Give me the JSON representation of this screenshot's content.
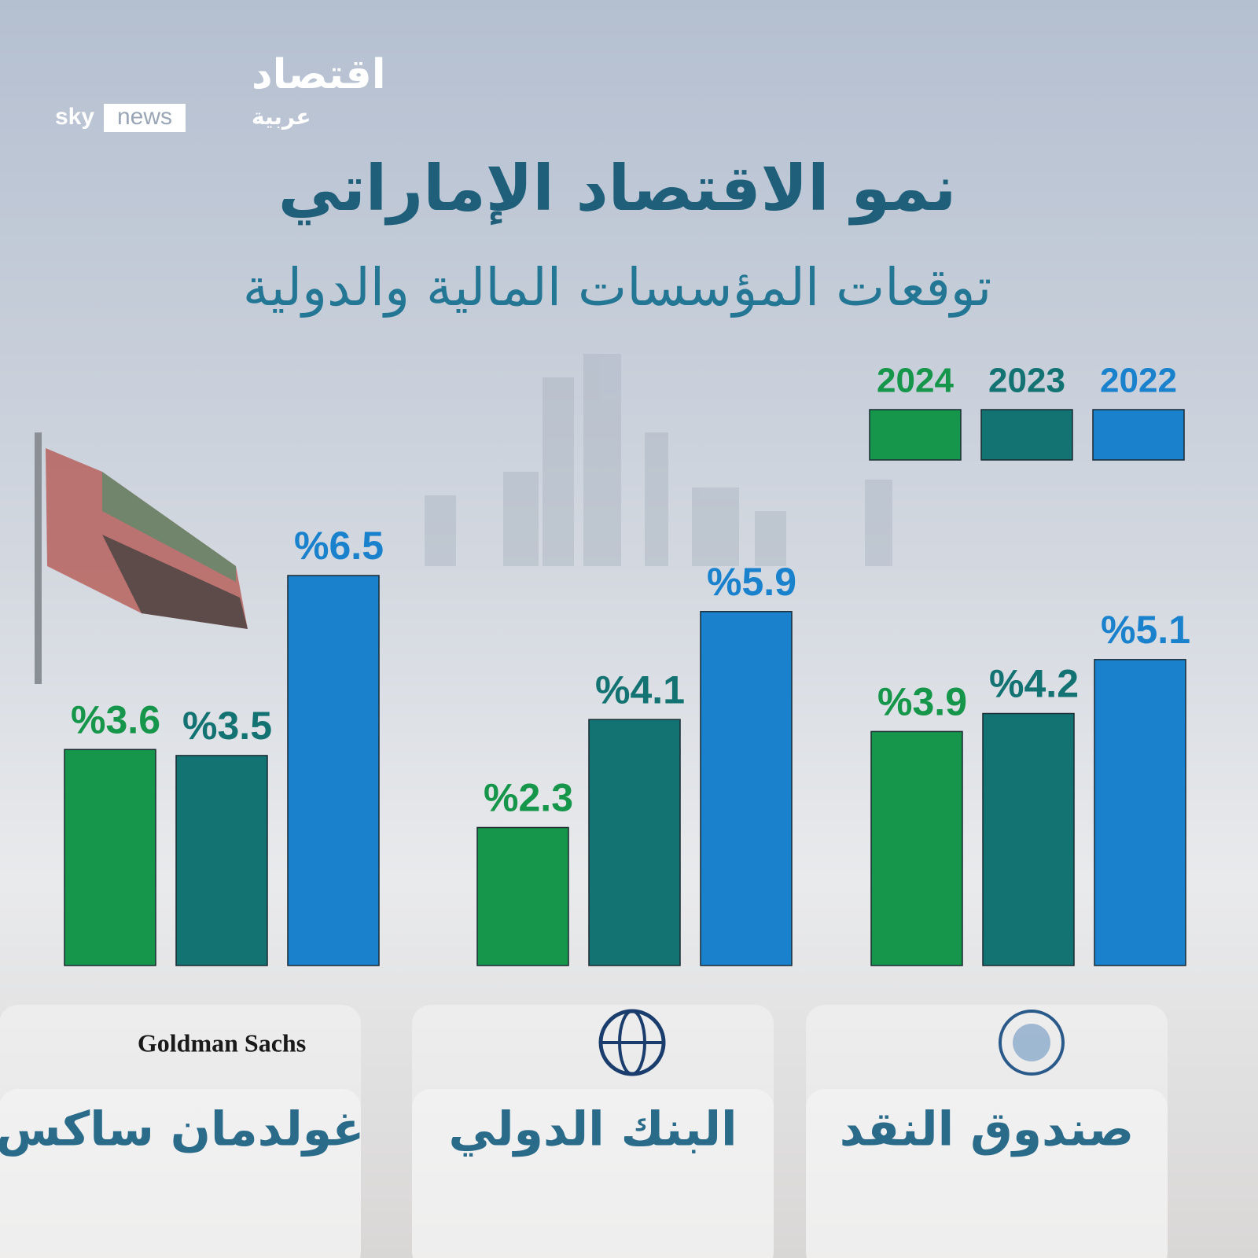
{
  "logo": {
    "brand": "اقتصاد",
    "sky": "sky",
    "news": "news",
    "arabic": "عربية"
  },
  "chart_data": {
    "type": "bar",
    "title": "نمو الاقتصاد الإماراتي",
    "subtitle": "توقعات المؤسسات المالية والدولية",
    "categories": [
      "صندوق النقد",
      "البنك الدولي",
      "غولدمان ساكس"
    ],
    "category_logos": [
      "INTERNATIONAL MONETARY FUND",
      "",
      "Goldman Sachs"
    ],
    "series": [
      {
        "name": "2022",
        "color": "#1a82cc",
        "values": [
          5.1,
          5.9,
          6.5
        ],
        "value_labels": [
          "%5.1",
          "%5.9",
          "%6.5"
        ]
      },
      {
        "name": "2023",
        "color": "#137272",
        "values": [
          4.2,
          4.1,
          3.5
        ],
        "value_labels": [
          "%4.2",
          "%4.1",
          "%3.5"
        ]
      },
      {
        "name": "2024",
        "color": "#16964a",
        "values": [
          3.9,
          2.3,
          3.6
        ],
        "value_labels": [
          "%3.9",
          "%2.3",
          "%3.6"
        ]
      }
    ],
    "legend": "top-right"
  }
}
